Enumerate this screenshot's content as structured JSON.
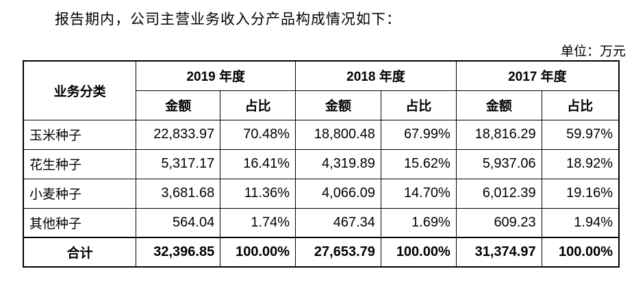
{
  "intro": "报告期内，公司主营业务收入分产品构成情况如下：",
  "unit": "单位：万元",
  "table": {
    "category_header": "业务分类",
    "years": [
      "2019 年度",
      "2018 年度",
      "2017 年度"
    ],
    "sub_headers": [
      "金额",
      "占比"
    ],
    "rows": [
      {
        "name": "玉米种子",
        "values": [
          "22,833.97",
          "70.48%",
          "18,800.48",
          "67.99%",
          "18,816.29",
          "59.97%"
        ]
      },
      {
        "name": "花生种子",
        "values": [
          "5,317.17",
          "16.41%",
          "4,319.89",
          "15.62%",
          "5,937.06",
          "18.92%"
        ]
      },
      {
        "name": "小麦种子",
        "values": [
          "3,681.68",
          "11.36%",
          "4,066.09",
          "14.70%",
          "6,012.39",
          "19.16%"
        ]
      },
      {
        "name": "其他种子",
        "values": [
          "564.04",
          "1.74%",
          "467.34",
          "1.69%",
          "609.23",
          "1.94%"
        ]
      }
    ],
    "total": {
      "name": "合计",
      "values": [
        "32,396.85",
        "100.00%",
        "27,653.79",
        "100.00%",
        "31,374.97",
        "100.00%"
      ]
    }
  }
}
